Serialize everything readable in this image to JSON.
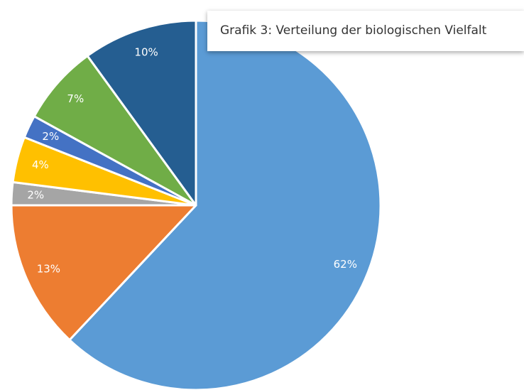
{
  "chart_data": {
    "type": "pie",
    "title": "Grafik 3: Verteilung der biologischen Vielfalt",
    "values": [
      62,
      13,
      2,
      4,
      2,
      7,
      10
    ],
    "value_labels": [
      "62%",
      "13%",
      "2%",
      "4%",
      "2%",
      "7%",
      "10%"
    ],
    "colors": [
      "#5b9bd5",
      "#ed7d31",
      "#a5a5a5",
      "#ffc000",
      "#4472c4",
      "#70ad47",
      "#255e91"
    ]
  }
}
